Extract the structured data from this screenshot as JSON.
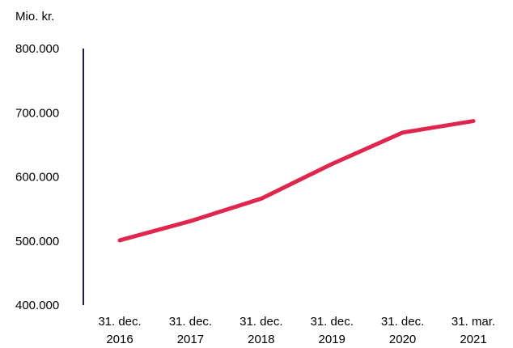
{
  "chart_data": {
    "type": "line",
    "unit_label": "Mio. kr.",
    "categories": [
      [
        "31. dec.",
        "2016"
      ],
      [
        "31. dec.",
        "2017"
      ],
      [
        "31. dec.",
        "2018"
      ],
      [
        "31. dec.",
        "2019"
      ],
      [
        "31. dec.",
        "2020"
      ],
      [
        "31. mar.",
        "2021"
      ]
    ],
    "series": [
      {
        "values": [
          501000,
          531000,
          566000,
          620000,
          669000,
          687000
        ]
      }
    ],
    "ylim": [
      400000,
      800000
    ],
    "yticks": [
      "400.000",
      "500.000",
      "600.000",
      "700.000",
      "800.000"
    ],
    "ytick_values": [
      400000,
      500000,
      600000,
      700000,
      800000
    ],
    "grid": false,
    "line_color": "#e0264e",
    "axis_color": "#1f1a4e"
  }
}
